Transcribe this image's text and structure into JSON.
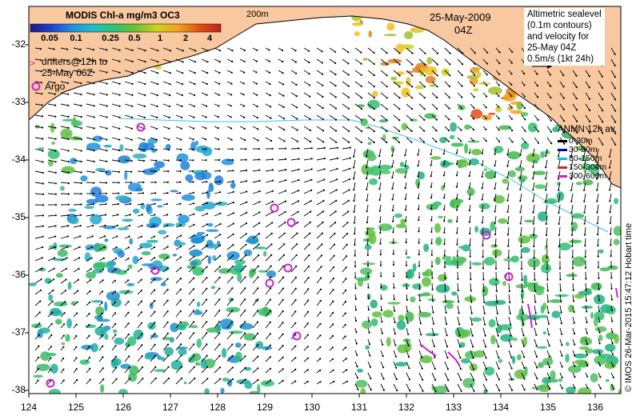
{
  "title": "MODIS Chl-a mg/m3 OC3",
  "colorbar": {
    "ticks": [
      "0.05",
      "0.1",
      "0.25",
      "0.5",
      "1",
      "2",
      "4"
    ],
    "colors": [
      "#1a1a8c",
      "#2040d0",
      "#2090e0",
      "#20c0c0",
      "#30c070",
      "#70c030",
      "#d0d020",
      "#f0a020",
      "#e05010",
      "#c02020"
    ]
  },
  "isobath_label": "200m",
  "date_line1": "25-May-2009",
  "date_line2": "04Z",
  "altimetry_lines": [
    "Altimetric sealevel",
    "(0.1m contours)",
    "and velocity for",
    "25-May 04Z",
    "0.5m/s (1kt 24h)"
  ],
  "drifters_lines": [
    "drifters@12h to",
    "25-May 06Z"
  ],
  "argo_label": "Argo",
  "anmn": {
    "title": "ANMN 12h av.",
    "rows": [
      {
        "label": "0-30m",
        "color": "#000000"
      },
      {
        "label": "30-80m",
        "color": "#0000cc"
      },
      {
        "label": "80-150m",
        "color": "#00c0e0"
      },
      {
        "label": "150-300m",
        "color": "#e02020"
      },
      {
        "label": "300-600m",
        "color": "#d020d0"
      }
    ]
  },
  "y_ticks": [
    "-32",
    "-33",
    "-34",
    "-35",
    "-36",
    "-37",
    "-38"
  ],
  "x_ticks": [
    "124",
    "125",
    "126",
    "127",
    "128",
    "129",
    "130",
    "131",
    "132",
    "133",
    "134",
    "135",
    "136"
  ],
  "credit": "© IMOS 26-Mar-2015 15:47:12 Hobart time",
  "colors": {
    "land": "#f8c8a0",
    "argo": "#d020d0",
    "vector": "#000000",
    "isobath": "#40c0e0"
  }
}
